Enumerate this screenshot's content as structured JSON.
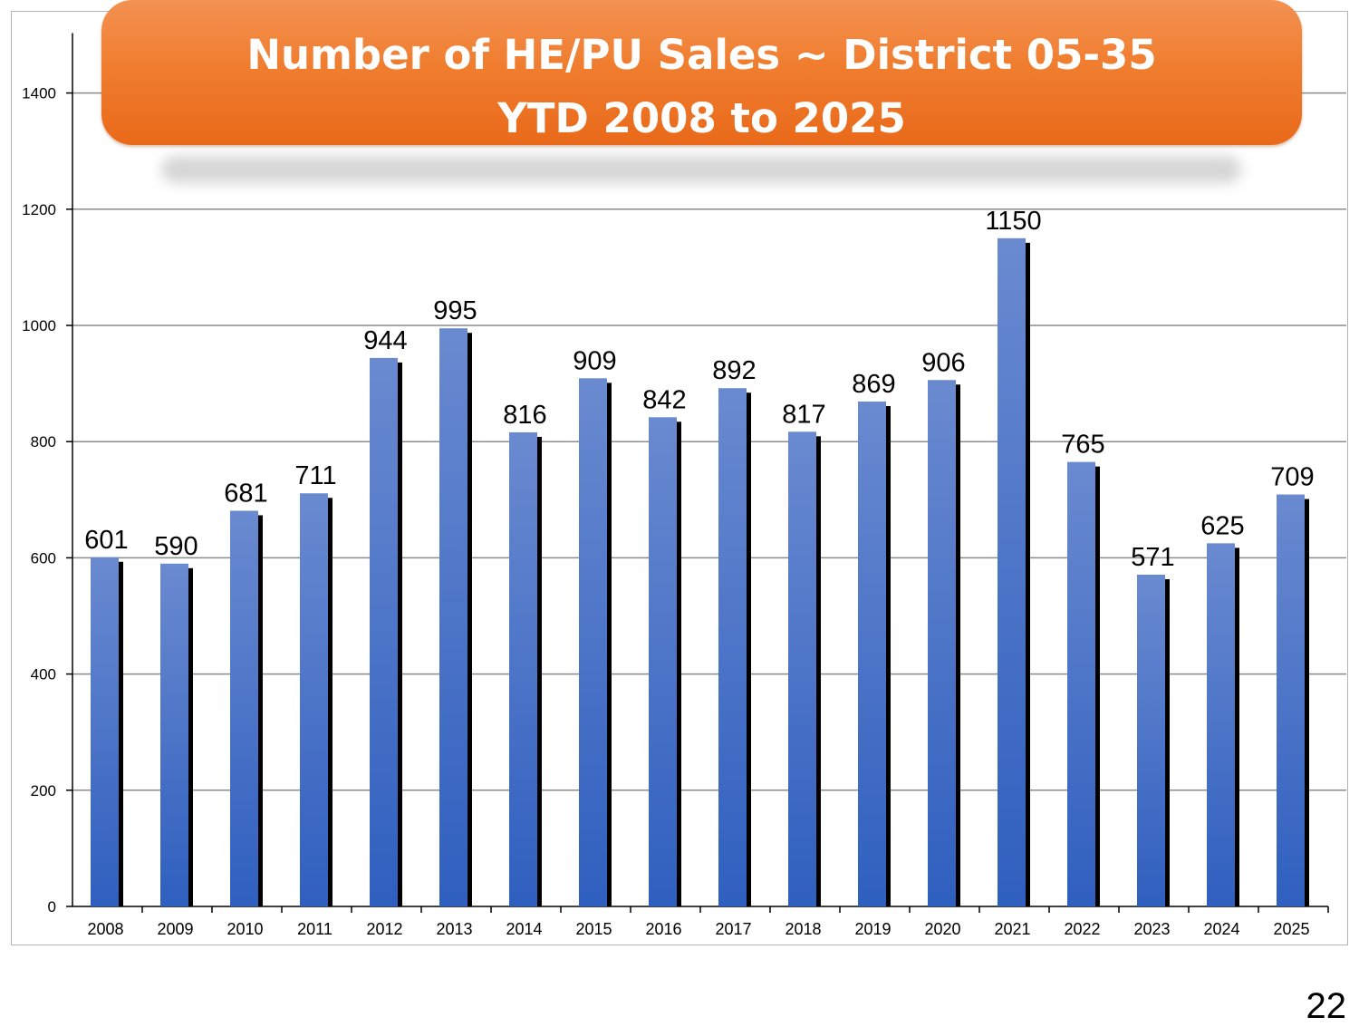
{
  "page": {
    "number": "22"
  },
  "chart_data": {
    "type": "bar",
    "title_lines": [
      "Number of HE/PU Sales ~ District 05-35",
      "YTD 2008 to 2025"
    ],
    "xlabel": "",
    "ylabel": "",
    "categories": [
      "2008",
      "2009",
      "2010",
      "2011",
      "2012",
      "2013",
      "2014",
      "2015",
      "2016",
      "2017",
      "2018",
      "2019",
      "2020",
      "2021",
      "2022",
      "2023",
      "2024",
      "2025"
    ],
    "values": [
      601,
      590,
      681,
      711,
      944,
      995,
      816,
      909,
      842,
      892,
      817,
      869,
      906,
      1150,
      765,
      571,
      625,
      709
    ],
    "ylim": [
      0,
      1500
    ],
    "yticks": [
      0,
      200,
      400,
      600,
      800,
      1000,
      1200,
      1400
    ],
    "grid": true,
    "legend": "none",
    "data_labels": true,
    "colors": {
      "bar_top": "#6a8ad0",
      "bar_bottom": "#2f5fbf",
      "bar_shadow": "#000000",
      "gridline": "#8c8c8c",
      "title_banner": "#f07d2f",
      "title_text": "#ffffff"
    }
  }
}
